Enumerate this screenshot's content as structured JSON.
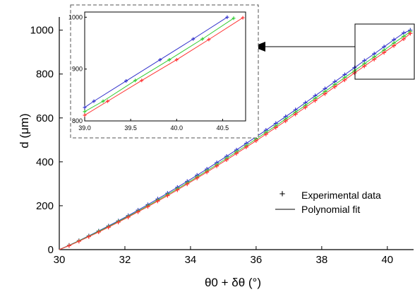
{
  "chart_data": [
    {
      "type": "line",
      "xlabel": "θ0 + δθ (°)",
      "ylabel": "d (μm)",
      "xlim": [
        30,
        40.8
      ],
      "ylim": [
        0,
        1060
      ],
      "xticks": [
        "30",
        "32",
        "34",
        "36",
        "38",
        "40"
      ],
      "yticks": [
        "0",
        "200",
        "400",
        "600",
        "800",
        "1000"
      ],
      "grid": false,
      "legend": {
        "position": "bottom-right",
        "entries": [
          {
            "marker": "+",
            "label": "Experimental data"
          },
          {
            "marker": "line",
            "label": "Polynomial fit"
          }
        ]
      },
      "series": [
        {
          "color": "#3333cc",
          "x": [
            30.0,
            30.3,
            30.6,
            30.9,
            31.2,
            31.5,
            31.8,
            32.1,
            32.4,
            32.7,
            33.0,
            33.3,
            33.6,
            33.9,
            34.2,
            34.5,
            34.8,
            35.1,
            35.4,
            35.7,
            36.0,
            36.3,
            36.6,
            36.9,
            37.2,
            37.5,
            37.8,
            38.1,
            38.4,
            38.7,
            39.0,
            39.3,
            39.6,
            39.9,
            40.2,
            40.5,
            40.7
          ],
          "y": [
            0,
            20,
            41,
            63,
            85,
            108,
            131,
            155,
            180,
            205,
            231,
            257,
            284,
            311,
            339,
            367,
            396,
            425,
            454,
            484,
            514,
            544,
            575,
            606,
            637,
            669,
            701,
            733,
            765,
            797,
            829,
            861,
            892,
            924,
            956,
            987,
            1000
          ]
        },
        {
          "color": "#33cc33",
          "x": [
            30.0,
            30.3,
            30.6,
            30.9,
            31.2,
            31.5,
            31.8,
            32.1,
            32.4,
            32.7,
            33.0,
            33.3,
            33.6,
            33.9,
            34.2,
            34.5,
            34.8,
            35.1,
            35.4,
            35.7,
            36.0,
            36.3,
            36.6,
            36.9,
            37.2,
            37.5,
            37.8,
            38.1,
            38.4,
            38.7,
            39.0,
            39.3,
            39.6,
            39.9,
            40.2,
            40.5,
            40.7
          ],
          "y": [
            0,
            19,
            40,
            61,
            83,
            105,
            128,
            151,
            175,
            200,
            225,
            251,
            277,
            304,
            331,
            359,
            387,
            416,
            445,
            474,
            504,
            534,
            564,
            595,
            626,
            657,
            689,
            720,
            752,
            784,
            815,
            847,
            878,
            909,
            941,
            972,
            993
          ]
        },
        {
          "color": "#ff3333",
          "x": [
            30.0,
            30.3,
            30.6,
            30.9,
            31.2,
            31.5,
            31.8,
            32.1,
            32.4,
            32.7,
            33.0,
            33.3,
            33.6,
            33.9,
            34.2,
            34.5,
            34.8,
            35.1,
            35.4,
            35.7,
            36.0,
            36.3,
            36.6,
            36.9,
            37.2,
            37.5,
            37.8,
            38.1,
            38.4,
            38.7,
            39.0,
            39.3,
            39.6,
            39.9,
            40.2,
            40.5,
            40.7
          ],
          "y": [
            0,
            18,
            38,
            59,
            80,
            102,
            125,
            148,
            172,
            196,
            221,
            246,
            272,
            299,
            326,
            353,
            381,
            409,
            438,
            467,
            496,
            526,
            556,
            586,
            617,
            648,
            679,
            710,
            742,
            773,
            805,
            836,
            867,
            898,
            929,
            960,
            985
          ]
        }
      ]
    },
    {
      "type": "line",
      "panel": "inset",
      "xlim": [
        39.0,
        40.75
      ],
      "ylim": [
        800,
        1010
      ],
      "xticks": [
        "39.0",
        "39.5",
        "40.0",
        "40.5"
      ],
      "yticks": [
        "800",
        "900",
        "1000"
      ],
      "grid": false,
      "series": [
        {
          "color": "#3333cc",
          "x": [
            39.0,
            39.1,
            39.45,
            39.82,
            40.18,
            40.55
          ],
          "y": [
            826,
            838,
            877,
            918,
            958,
            1000
          ]
        },
        {
          "color": "#33cc33",
          "x": [
            39.0,
            39.2,
            39.55,
            39.92,
            40.28,
            40.62
          ],
          "y": [
            818,
            838,
            878,
            918,
            958,
            998
          ]
        },
        {
          "color": "#ff3333",
          "x": [
            39.0,
            39.25,
            39.62,
            40.0,
            40.35,
            40.72
          ],
          "y": [
            811,
            838,
            878,
            918,
            957,
            999
          ]
        }
      ]
    }
  ]
}
